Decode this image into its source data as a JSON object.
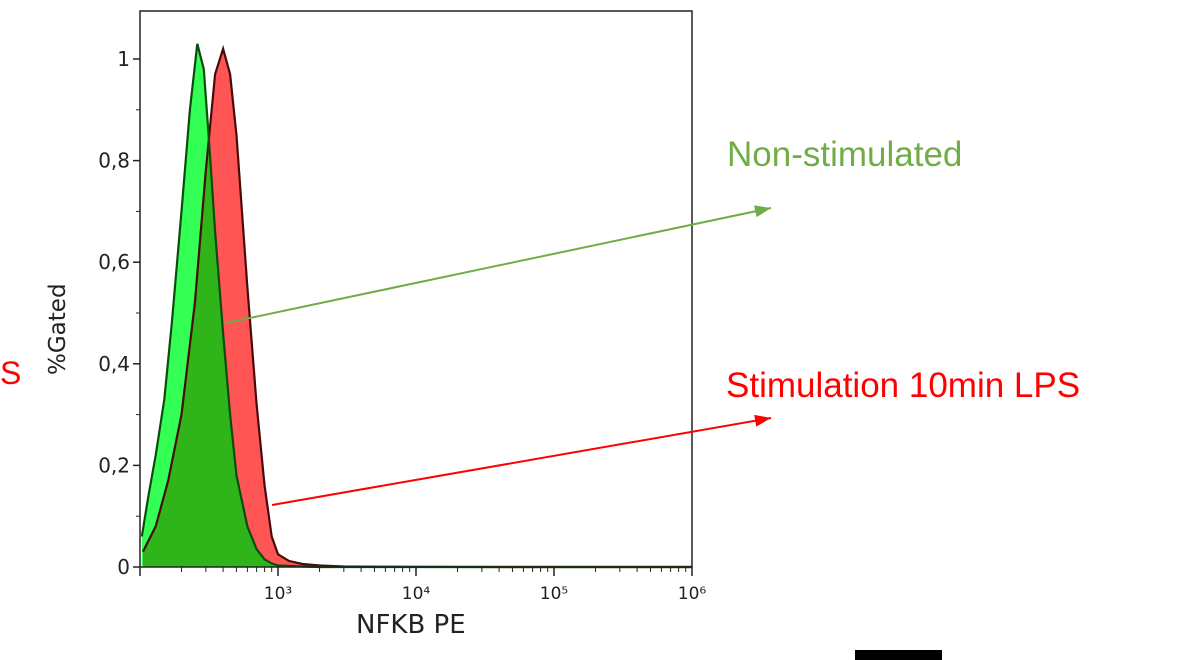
{
  "chart_data": {
    "type": "area",
    "xlabel": "NFKB PE",
    "ylabel": "%Gated",
    "x_scale": "log",
    "xlim": [
      100,
      1000000
    ],
    "ylim": [
      0,
      1.05
    ],
    "x_ticks": [
      {
        "value": 1000,
        "label": "10³"
      },
      {
        "value": 10000,
        "label": "10⁴"
      },
      {
        "value": 100000,
        "label": "10⁵"
      },
      {
        "value": 1000000,
        "label": "10⁶"
      }
    ],
    "y_ticks": [
      {
        "value": 0,
        "label": "0"
      },
      {
        "value": 0.2,
        "label": "0,2"
      },
      {
        "value": 0.4,
        "label": "0,4"
      },
      {
        "value": 0.6,
        "label": "0,6"
      },
      {
        "value": 0.8,
        "label": "0,8"
      },
      {
        "value": 1,
        "label": "1"
      }
    ],
    "series": [
      {
        "name": "Stimulation 10min LPS",
        "fill": "#ff5555",
        "stroke": "#4a0a0a",
        "x": [
          105,
          130,
          160,
          200,
          250,
          300,
          350,
          400,
          450,
          500,
          600,
          700,
          800,
          900,
          1000,
          1200,
          1500,
          2000,
          3000,
          5000,
          10000,
          100000,
          1000000
        ],
        "y": [
          0.03,
          0.08,
          0.17,
          0.3,
          0.52,
          0.78,
          0.97,
          1.02,
          0.97,
          0.85,
          0.55,
          0.32,
          0.16,
          0.06,
          0.025,
          0.012,
          0.006,
          0.003,
          0.001,
          0.0005,
          0.0002,
          0.0,
          0.0
        ]
      },
      {
        "name": "Non-stimulated",
        "fill": "#33ff55",
        "stroke": "#0b4d0b",
        "x": [
          103,
          115,
          130,
          150,
          170,
          200,
          230,
          260,
          290,
          320,
          350,
          400,
          450,
          500,
          600,
          700,
          800,
          900,
          1000,
          1500,
          2000,
          10000,
          1000000
        ],
        "y": [
          0.06,
          0.14,
          0.22,
          0.33,
          0.48,
          0.7,
          0.9,
          1.03,
          0.98,
          0.82,
          0.66,
          0.46,
          0.3,
          0.18,
          0.08,
          0.035,
          0.015,
          0.007,
          0.003,
          0.001,
          0.0,
          0.0,
          0.0
        ]
      }
    ],
    "overlap_fill": "#2fb51a",
    "annotations": [
      {
        "text": "Non-stimulated",
        "color": "#70ad47"
      },
      {
        "text": "Stimulation 10min LPS",
        "color": "#ff0000"
      }
    ],
    "side_mark": {
      "text": "S",
      "color": "#ff0000"
    }
  }
}
